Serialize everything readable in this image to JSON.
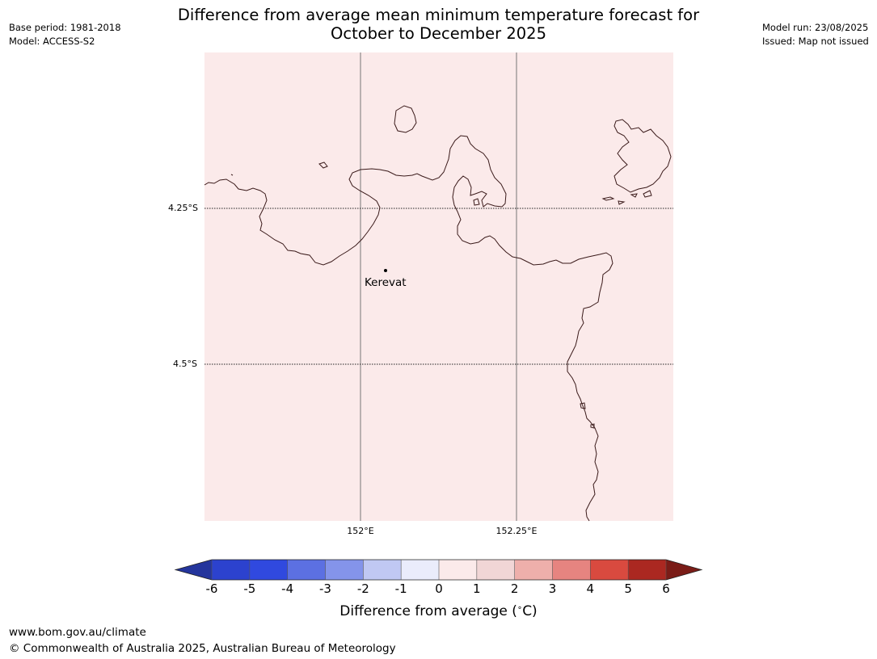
{
  "header": {
    "base_period": "Base period: 1981-2018",
    "model": "Model: ACCESS-S2",
    "model_run": "Model run: 23/08/2025",
    "issued": "Issued: Map not issued",
    "title_line1": "Difference from average mean minimum temperature forecast for",
    "title_line2": "October to December 2025"
  },
  "map": {
    "background_color": "#fbeaea",
    "lat_labels": [
      "4.25°S",
      "4.5°S"
    ],
    "lon_labels": [
      "152°E",
      "152.25°E"
    ],
    "place_label": "Kerevat"
  },
  "colorbar": {
    "ticks": [
      "-6",
      "-5",
      "-4",
      "-3",
      "-2",
      "-1",
      "0",
      "1",
      "2",
      "3",
      "4",
      "5",
      "6"
    ],
    "colors": [
      "#24359c",
      "#2c42ce",
      "#3049df",
      "#5c70e2",
      "#8494ea",
      "#c0c8f3",
      "#eaecfb",
      "#fbeaea",
      "#f1d6d6",
      "#eeafab",
      "#e68480",
      "#d94a3f",
      "#ab2821",
      "#7a1c17"
    ],
    "label": "Difference from average ($^\\circ$C)",
    "label_text": "Difference from average (",
    "label_unit": "C)"
  },
  "footer": {
    "url": "www.bom.gov.au/climate",
    "copyright": "© Commonwealth of Australia 2025, Australian Bureau of Meteorology"
  }
}
